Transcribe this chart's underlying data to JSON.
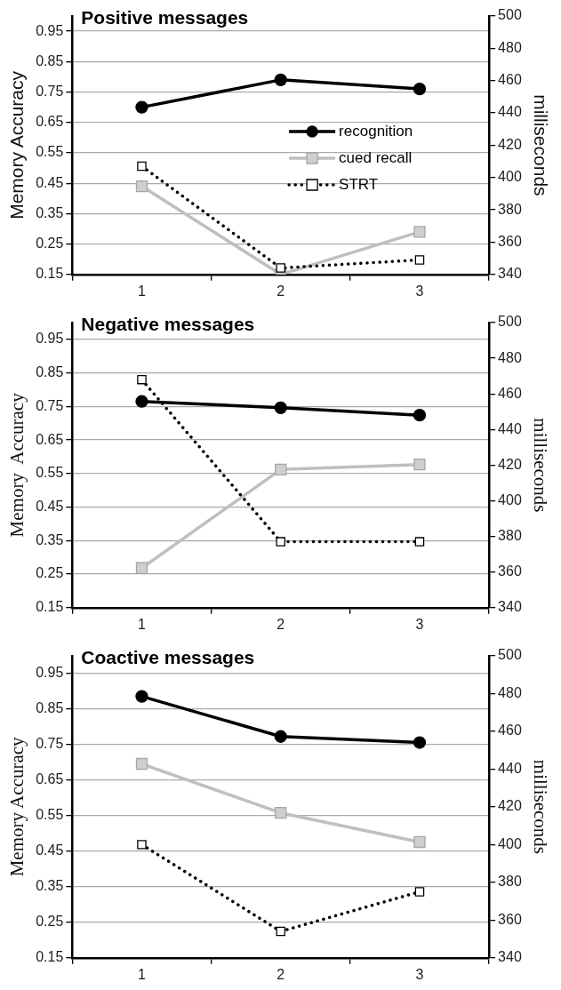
{
  "chart_data": [
    {
      "type": "line",
      "title": "Positive messages",
      "categories": [
        "1",
        "2",
        "3"
      ],
      "ylabel": "Memory Accuracy",
      "y2label": "milliseconds",
      "ylim": [
        0.15,
        1.0
      ],
      "yticks": [
        0.15,
        0.25,
        0.35,
        0.45,
        0.55,
        0.65,
        0.75,
        0.85,
        0.95
      ],
      "y2lim": [
        340,
        500
      ],
      "y2ticks": [
        340,
        360,
        380,
        400,
        420,
        440,
        460,
        480,
        500
      ],
      "grid": "y",
      "legend": "right",
      "series": [
        {
          "name": "recognition",
          "color": "#000000",
          "marker": "circle",
          "line_style": "solid",
          "values": [
            0.7,
            0.79,
            0.76
          ]
        },
        {
          "name": "cued recall",
          "color": "#bfbfbf",
          "marker": "square",
          "line_style": "solid",
          "values": [
            0.44,
            0.15,
            0.29
          ]
        },
        {
          "name": "STRT",
          "color": "#000000",
          "marker": "square",
          "line_style": "dotted",
          "axis": "y2",
          "values": [
            407,
            344,
            349
          ]
        }
      ]
    },
    {
      "type": "line",
      "title": "Negative messages",
      "categories": [
        "1",
        "2",
        "3"
      ],
      "ylabel": "Memory  Accuracy",
      "y2label": "milliseconds",
      "ylim": [
        0.15,
        1.0
      ],
      "yticks": [
        0.15,
        0.25,
        0.35,
        0.45,
        0.55,
        0.65,
        0.75,
        0.85,
        0.95
      ],
      "y2lim": [
        340,
        500
      ],
      "y2ticks": [
        340,
        360,
        380,
        400,
        420,
        440,
        460,
        480,
        500
      ],
      "grid": "y",
      "series": [
        {
          "color": "#000000",
          "marker": "circle",
          "line_style": "solid",
          "values": [
            0.765,
            0.746,
            0.724
          ]
        },
        {
          "color": "#bfbfbf",
          "marker": "square",
          "line_style": "solid",
          "values": [
            0.268,
            0.562,
            0.577
          ]
        },
        {
          "color": "#000000",
          "marker": "square",
          "line_style": "dotted",
          "axis": "y2",
          "values": [
            468,
            377,
            377
          ]
        }
      ]
    },
    {
      "type": "line",
      "title": "Coactive messages",
      "categories": [
        "1",
        "2",
        "3"
      ],
      "ylabel": "Memory Accuracy",
      "y2label": "milliseconds",
      "ylim": [
        0.15,
        1.0
      ],
      "yticks": [
        0.15,
        0.25,
        0.35,
        0.45,
        0.55,
        0.65,
        0.75,
        0.85,
        0.95
      ],
      "y2lim": [
        340,
        500
      ],
      "y2ticks": [
        340,
        360,
        380,
        400,
        420,
        440,
        460,
        480,
        500
      ],
      "grid": "y",
      "series": [
        {
          "color": "#000000",
          "marker": "circle",
          "line_style": "solid",
          "values": [
            0.886,
            0.773,
            0.756
          ]
        },
        {
          "color": "#bfbfbf",
          "marker": "square",
          "line_style": "solid",
          "values": [
            0.696,
            0.558,
            0.476
          ]
        },
        {
          "color": "#000000",
          "marker": "square",
          "line_style": "dotted",
          "axis": "y2",
          "values": [
            400,
            354,
            375
          ]
        }
      ]
    }
  ]
}
